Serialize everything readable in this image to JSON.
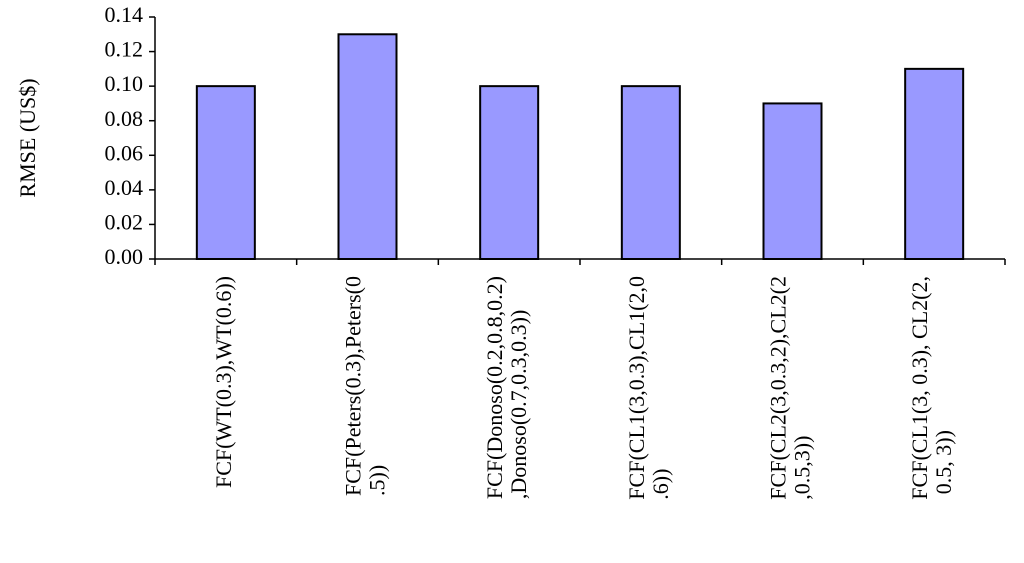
{
  "chart_data": {
    "type": "bar",
    "y_label": "RMSE (US$)",
    "categories": [
      "FCF(WT(0.3),WT(0.6))",
      "FCF(Peters(0.3),Peters(0.5))",
      "FCF(Donoso(0.2,0.8,0.2),Donoso(0.7,0.3,0.3))",
      "FCF(CL1(3,0.3),CL1(2,0.6))",
      "FCF(CL2(3,0.3,2),CL2(2,0.5,3))",
      "FCF(CL1(3, 0.3), CL2(2, 0.5, 3))"
    ],
    "values": [
      0.1,
      0.13,
      0.1,
      0.1,
      0.09,
      0.11
    ],
    "color": "#9999ff",
    "ylim": [
      0,
      0.14
    ],
    "yticks": [
      {
        "value": 0,
        "label": "0.00"
      },
      {
        "value": 0.02,
        "label": "0.02"
      },
      {
        "value": 0.04,
        "label": "0.04"
      },
      {
        "value": 0.06,
        "label": "0.06"
      },
      {
        "value": 0.08,
        "label": "0.08"
      },
      {
        "value": 0.1,
        "label": "0.10"
      },
      {
        "value": 0.12,
        "label": "0.12"
      },
      {
        "value": 0.14,
        "label": "0.14"
      }
    ]
  }
}
